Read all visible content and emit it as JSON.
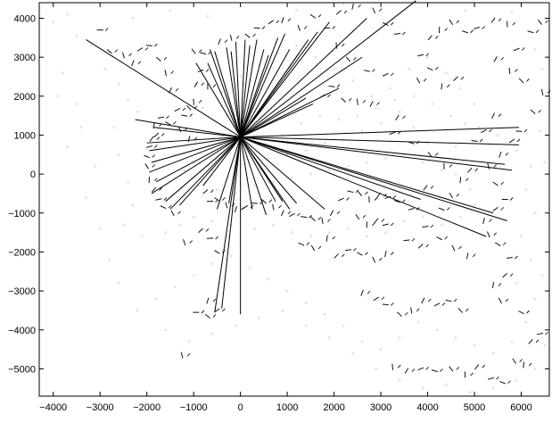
{
  "chart_data": {
    "type": "scatter",
    "title": "",
    "xlabel": "",
    "ylabel": "",
    "xlim": [
      -4300,
      6600
    ],
    "ylim": [
      -5700,
      4400
    ],
    "grid": false,
    "legend": "none",
    "xticks": [
      -4000,
      -3000,
      -2000,
      -1000,
      0,
      1000,
      2000,
      3000,
      4000,
      5000,
      6000
    ],
    "yticks": [
      4000,
      3000,
      2000,
      1000,
      0,
      -1000,
      -2000,
      -3000,
      -4000,
      -5000
    ],
    "xtick_labels": [
      "−4000",
      "−3000",
      "−2000",
      "−1000",
      "0",
      "1000",
      "2000",
      "3000",
      "4000",
      "5000",
      "6000"
    ],
    "ytick_labels": [
      "4000",
      "3000",
      "2000",
      "1000",
      "0",
      "−1000",
      "−2000",
      "−3000",
      "−4000",
      "−5000"
    ],
    "colors": {
      "rays": "#000000",
      "marks": "#111111",
      "cloud": "#c8c8c8",
      "axes": "#000000"
    },
    "origin": [
      0,
      950
    ],
    "ray_endpoints": [
      [
        -3300,
        3450
      ],
      [
        -2250,
        1400
      ],
      [
        -1850,
        1200
      ],
      [
        -2000,
        800
      ],
      [
        -1950,
        600
      ],
      [
        -1900,
        300
      ],
      [
        -1950,
        50
      ],
      [
        -1800,
        -200
      ],
      [
        -1900,
        -500
      ],
      [
        -1600,
        -700
      ],
      [
        -1500,
        -900
      ],
      [
        -1300,
        -800
      ],
      [
        -800,
        -300
      ],
      [
        -950,
        2850
      ],
      [
        -650,
        3200
      ],
      [
        -550,
        3150
      ],
      [
        -300,
        3250
      ],
      [
        -200,
        3150
      ],
      [
        -100,
        3400
      ],
      [
        100,
        3450
      ],
      [
        200,
        3300
      ],
      [
        350,
        3450
      ],
      [
        500,
        3200
      ],
      [
        600,
        3050
      ],
      [
        800,
        3500
      ],
      [
        950,
        3600
      ],
      [
        1050,
        3200
      ],
      [
        1250,
        3100
      ],
      [
        1450,
        3450
      ],
      [
        1650,
        3650
      ],
      [
        1900,
        3900
      ],
      [
        2700,
        4000
      ],
      [
        3750,
        4450
      ],
      [
        2600,
        3000
      ],
      [
        2100,
        2200
      ],
      [
        1550,
        1800
      ],
      [
        1400,
        1950
      ],
      [
        5950,
        1200
      ],
      [
        5950,
        750
      ],
      [
        5650,
        250
      ],
      [
        5800,
        100
      ],
      [
        5400,
        -1000
      ],
      [
        5700,
        -1200
      ],
      [
        5250,
        -1600
      ],
      [
        3850,
        -650
      ],
      [
        1200,
        -750
      ],
      [
        1050,
        -900
      ],
      [
        750,
        -700
      ],
      [
        550,
        -1050
      ],
      [
        250,
        -900
      ],
      [
        -250,
        -750
      ],
      [
        -500,
        -900
      ],
      [
        -550,
        -3550
      ],
      [
        -400,
        -3450
      ],
      [
        0,
        -3600
      ],
      [
        1800,
        -900
      ],
      [
        900,
        -700
      ],
      [
        -700,
        2850
      ]
    ],
    "feature_marks": [
      [
        -3000,
        3700
      ],
      [
        -2800,
        3150
      ],
      [
        -2500,
        3050
      ],
      [
        -2300,
        2850
      ],
      [
        -2150,
        3200
      ],
      [
        -1950,
        3300
      ],
      [
        -1750,
        2950
      ],
      [
        -1600,
        2600
      ],
      [
        -1500,
        2150
      ],
      [
        -1350,
        1650
      ],
      [
        -1200,
        1500
      ],
      [
        -1100,
        1700
      ],
      [
        -1000,
        1850
      ],
      [
        -950,
        2300
      ],
      [
        -850,
        2650
      ],
      [
        -800,
        3100
      ],
      [
        -1000,
        3150
      ],
      [
        -700,
        2250
      ],
      [
        -1900,
        900
      ],
      [
        -1950,
        700
      ],
      [
        -2000,
        450
      ],
      [
        -2000,
        200
      ],
      [
        -1950,
        -150
      ],
      [
        -1850,
        -400
      ],
      [
        -1750,
        -650
      ],
      [
        -1650,
        -850
      ],
      [
        -1450,
        -1000
      ],
      [
        -1850,
        1250
      ],
      [
        -1800,
        1000
      ],
      [
        -1700,
        1450
      ],
      [
        -1550,
        1300
      ],
      [
        -1300,
        1150
      ],
      [
        -1100,
        900
      ],
      [
        -750,
        -450
      ],
      [
        -650,
        -700
      ],
      [
        -500,
        -650
      ],
      [
        -300,
        -800
      ],
      [
        -100,
        -900
      ],
      [
        100,
        -850
      ],
      [
        300,
        -750
      ],
      [
        500,
        -700
      ],
      [
        700,
        -850
      ],
      [
        900,
        -1000
      ],
      [
        1100,
        -1050
      ],
      [
        1350,
        -1100
      ],
      [
        1550,
        -1150
      ],
      [
        1750,
        -1200
      ],
      [
        1950,
        -1000
      ],
      [
        2150,
        -650
      ],
      [
        2350,
        -450
      ],
      [
        2550,
        -500
      ],
      [
        2750,
        -650
      ],
      [
        2950,
        -550
      ],
      [
        3150,
        -600
      ],
      [
        3350,
        -700
      ],
      [
        2500,
        -1100
      ],
      [
        2700,
        -1300
      ],
      [
        2900,
        -1200
      ],
      [
        3100,
        -1300
      ],
      [
        1300,
        -1800
      ],
      [
        1550,
        -1900
      ],
      [
        1850,
        -1650
      ],
      [
        2050,
        -2100
      ],
      [
        2300,
        -1950
      ],
      [
        2550,
        -2050
      ],
      [
        2850,
        -2200
      ],
      [
        3100,
        -2050
      ],
      [
        -850,
        -1450
      ],
      [
        -650,
        -1650
      ],
      [
        -500,
        -2000
      ],
      [
        -1200,
        -1750
      ],
      [
        -700,
        -3250
      ],
      [
        -500,
        -3500
      ],
      [
        -950,
        -3550
      ],
      [
        -700,
        -3650
      ],
      [
        -1250,
        -4650
      ],
      [
        2600,
        -3050
      ],
      [
        2900,
        -3200
      ],
      [
        3100,
        -3350
      ],
      [
        3400,
        -3600
      ],
      [
        3650,
        -3500
      ],
      [
        3900,
        -3250
      ],
      [
        4200,
        -3350
      ],
      [
        4450,
        -3250
      ],
      [
        4700,
        -3500
      ],
      [
        3250,
        -4950
      ],
      [
        3550,
        -5050
      ],
      [
        3850,
        -5000
      ],
      [
        4150,
        -5050
      ],
      [
        4500,
        -5000
      ],
      [
        4800,
        -5150
      ],
      [
        5050,
        -4950
      ],
      [
        5350,
        -5250
      ],
      [
        5600,
        -5350
      ],
      [
        5850,
        -4800
      ],
      [
        6050,
        -4900
      ],
      [
        6200,
        -4300
      ],
      [
        6400,
        -4100
      ],
      [
        6000,
        -3550
      ],
      [
        5550,
        -3250
      ],
      [
        5400,
        -2850
      ],
      [
        5650,
        -2600
      ],
      [
        5750,
        -2150
      ],
      [
        5500,
        -1800
      ],
      [
        5300,
        -1550
      ],
      [
        5200,
        -1200
      ],
      [
        5450,
        -900
      ],
      [
        5650,
        -650
      ],
      [
        5450,
        -250
      ],
      [
        5300,
        200
      ],
      [
        5550,
        500
      ],
      [
        5800,
        850
      ],
      [
        5950,
        1100
      ],
      [
        6250,
        1600
      ],
      [
        6450,
        2100
      ],
      [
        5400,
        1500
      ],
      [
        5200,
        1100
      ],
      [
        5000,
        850
      ],
      [
        6000,
        2400
      ],
      [
        5750,
        2650
      ],
      [
        5450,
        2950
      ],
      [
        5900,
        3200
      ],
      [
        6200,
        3650
      ],
      [
        6400,
        3900
      ],
      [
        5700,
        3850
      ],
      [
        5400,
        3950
      ],
      [
        5050,
        3750
      ],
      [
        4800,
        3650
      ],
      [
        4500,
        3900
      ],
      [
        4250,
        3700
      ],
      [
        4050,
        3500
      ],
      [
        3850,
        3050
      ],
      [
        4050,
        2700
      ],
      [
        3800,
        2400
      ],
      [
        4300,
        2250
      ],
      [
        4600,
        2450
      ],
      [
        3350,
        3600
      ],
      [
        3100,
        3850
      ],
      [
        2850,
        4200
      ],
      [
        2400,
        4300
      ],
      [
        2100,
        4150
      ],
      [
        1850,
        3750
      ],
      [
        1550,
        4050
      ],
      [
        1250,
        3750
      ],
      [
        900,
        3950
      ],
      [
        650,
        3900
      ],
      [
        350,
        3750
      ],
      [
        150,
        3550
      ],
      [
        -200,
        3500
      ],
      [
        -450,
        3400
      ],
      [
        1750,
        2000
      ],
      [
        1950,
        2250
      ],
      [
        2200,
        1900
      ],
      [
        2500,
        1850
      ],
      [
        2800,
        1800
      ],
      [
        3100,
        2550
      ],
      [
        2700,
        2650
      ],
      [
        2300,
        2950
      ],
      [
        2050,
        3300
      ],
      [
        3350,
        1450
      ],
      [
        3250,
        1050
      ],
      [
        3650,
        800
      ],
      [
        4050,
        500
      ],
      [
        4350,
        200
      ],
      [
        3950,
        -350
      ],
      [
        3650,
        -900
      ],
      [
        4300,
        -900
      ],
      [
        4500,
        -550
      ],
      [
        4700,
        -150
      ],
      [
        4900,
        100
      ],
      [
        3950,
        -1350
      ],
      [
        4250,
        -1650
      ],
      [
        4550,
        -1900
      ],
      [
        4850,
        -2100
      ],
      [
        3850,
        -1850
      ],
      [
        3550,
        -1700
      ]
    ],
    "background_points": [
      [
        -3500,
        3550
      ],
      [
        -3200,
        3300
      ],
      [
        -3800,
        2600
      ],
      [
        -3500,
        1800
      ],
      [
        -3900,
        2000
      ],
      [
        -2900,
        2700
      ],
      [
        -2600,
        2300
      ],
      [
        -2400,
        1900
      ],
      [
        -2200,
        1600
      ],
      [
        -2700,
        1200
      ],
      [
        -2600,
        500
      ],
      [
        -2400,
        -200
      ],
      [
        -2300,
        -800
      ],
      [
        -2500,
        -1300
      ],
      [
        -2100,
        -1600
      ],
      [
        -1600,
        -1500
      ],
      [
        -1300,
        -1300
      ],
      [
        -1000,
        -1100
      ],
      [
        -600,
        -1200
      ],
      [
        -200,
        -1300
      ],
      [
        300,
        -1400
      ],
      [
        700,
        -1300
      ],
      [
        1100,
        -1500
      ],
      [
        1500,
        -1600
      ],
      [
        1900,
        -1500
      ],
      [
        2300,
        -1400
      ],
      [
        2700,
        -1600
      ],
      [
        3100,
        -1500
      ],
      [
        3500,
        -1200
      ],
      [
        3900,
        -1100
      ],
      [
        4300,
        -1300
      ],
      [
        4700,
        -1100
      ],
      [
        5000,
        -800
      ],
      [
        4900,
        -400
      ],
      [
        4600,
        0
      ],
      [
        4300,
        400
      ],
      [
        4000,
        800
      ],
      [
        3700,
        1200
      ],
      [
        3400,
        1600
      ],
      [
        3000,
        1300
      ],
      [
        2600,
        1100
      ],
      [
        2200,
        900
      ],
      [
        1800,
        800
      ],
      [
        1400,
        600
      ],
      [
        1000,
        500
      ],
      [
        600,
        400
      ],
      [
        200,
        300
      ],
      [
        -200,
        200
      ],
      [
        -600,
        100
      ],
      [
        -1000,
        300
      ],
      [
        -1400,
        500
      ],
      [
        -1200,
        100
      ],
      [
        -900,
        -300
      ],
      [
        -500,
        -400
      ],
      [
        -100,
        -500
      ],
      [
        300,
        -300
      ],
      [
        700,
        -200
      ],
      [
        1100,
        -100
      ],
      [
        1500,
        0
      ],
      [
        1900,
        100
      ],
      [
        2300,
        200
      ],
      [
        2700,
        300
      ],
      [
        3100,
        400
      ],
      [
        3500,
        500
      ],
      [
        3900,
        300
      ],
      [
        4300,
        100
      ],
      [
        4600,
        700
      ],
      [
        4800,
        1300
      ],
      [
        5000,
        1800
      ],
      [
        4700,
        2200
      ],
      [
        4400,
        2600
      ],
      [
        4000,
        3000
      ],
      [
        3600,
        2700
      ],
      [
        3200,
        2200
      ],
      [
        2800,
        2000
      ],
      [
        2400,
        2400
      ],
      [
        2000,
        2700
      ],
      [
        1600,
        3000
      ],
      [
        1200,
        3300
      ],
      [
        800,
        3100
      ],
      [
        400,
        2800
      ],
      [
        0,
        2500
      ],
      [
        -400,
        2100
      ],
      [
        -800,
        1700
      ],
      [
        -300,
        1500
      ],
      [
        100,
        1400
      ],
      [
        500,
        1200
      ],
      [
        900,
        1000
      ],
      [
        1300,
        1300
      ],
      [
        1700,
        1500
      ],
      [
        2100,
        1400
      ],
      [
        2500,
        1500
      ],
      [
        2900,
        1700
      ],
      [
        3300,
        1900
      ],
      [
        3700,
        2000
      ],
      [
        4100,
        1800
      ],
      [
        4500,
        1500
      ],
      [
        5100,
        1200
      ],
      [
        5500,
        1000
      ],
      [
        5900,
        600
      ],
      [
        6200,
        200
      ],
      [
        6100,
        -400
      ],
      [
        6300,
        -1000
      ],
      [
        6000,
        -1600
      ],
      [
        6200,
        -2200
      ],
      [
        5900,
        -2800
      ],
      [
        6300,
        -3200
      ],
      [
        6100,
        -3800
      ],
      [
        5800,
        -4300
      ],
      [
        5400,
        -4600
      ],
      [
        5000,
        -4400
      ],
      [
        4600,
        -4200
      ],
      [
        4200,
        -4000
      ],
      [
        3800,
        -3800
      ],
      [
        3400,
        -4200
      ],
      [
        3000,
        -4500
      ],
      [
        2600,
        -4300
      ],
      [
        2200,
        -3900
      ],
      [
        1800,
        -3600
      ],
      [
        1400,
        -3300
      ],
      [
        1000,
        -3000
      ],
      [
        600,
        -2700
      ],
      [
        200,
        -2400
      ],
      [
        -200,
        -2100
      ],
      [
        -600,
        -2300
      ],
      [
        -1000,
        -2600
      ],
      [
        -1400,
        -2900
      ],
      [
        -1800,
        -3200
      ],
      [
        -2200,
        -3500
      ],
      [
        -1600,
        -4000
      ],
      [
        -1100,
        -4300
      ],
      [
        -600,
        -4100
      ],
      [
        -100,
        -3900
      ],
      [
        400,
        -3700
      ],
      [
        900,
        -3500
      ],
      [
        1400,
        -3900
      ],
      [
        1900,
        -4200
      ],
      [
        2400,
        -4600
      ],
      [
        2900,
        -5000
      ],
      [
        3400,
        -5300
      ],
      [
        3900,
        -5500
      ],
      [
        4400,
        -5400
      ],
      [
        4900,
        -5600
      ],
      [
        5400,
        -5500
      ],
      [
        5900,
        -5300
      ],
      [
        6300,
        -5000
      ],
      [
        -3100,
        200
      ],
      [
        -3300,
        -600
      ],
      [
        -3000,
        -1400
      ],
      [
        -2800,
        -2200
      ],
      [
        -2600,
        -2800
      ],
      [
        -3400,
        1200
      ],
      [
        -3700,
        700
      ],
      [
        -4000,
        3900
      ],
      [
        -3700,
        4100
      ],
      [
        -2300,
        4000
      ],
      [
        -1500,
        4200
      ],
      [
        -700,
        4050
      ],
      [
        1200,
        4200
      ],
      [
        2200,
        4350
      ],
      [
        4800,
        4200
      ],
      [
        5800,
        4150
      ],
      [
        6300,
        3200
      ],
      [
        6450,
        2700
      ],
      [
        6400,
        1100
      ],
      [
        6500,
        300
      ],
      [
        6450,
        -2600
      ],
      [
        6500,
        -4400
      ]
    ]
  }
}
